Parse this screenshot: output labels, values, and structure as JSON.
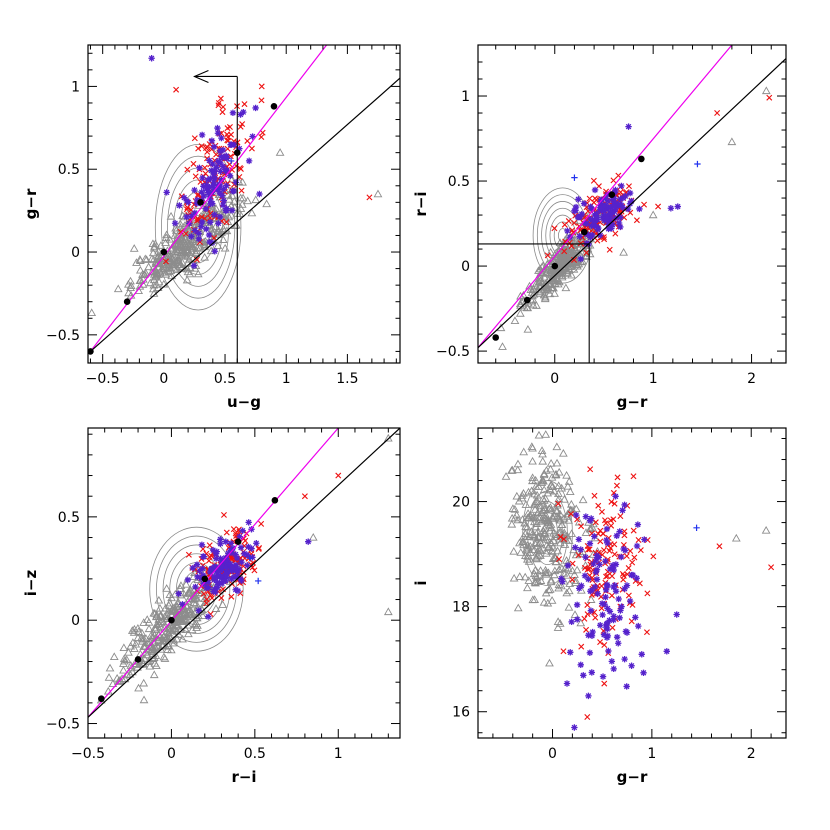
{
  "chart_data": [
    {
      "id": "p1",
      "type": "scatter",
      "xlabel": "u−g",
      "ylabel": "g−r",
      "xlim": [
        -0.62,
        1.93
      ],
      "ylim": [
        -0.67,
        1.25
      ],
      "xticks": [
        -0.5,
        0,
        0.5,
        1,
        1.5
      ],
      "xticklabels": [
        "−0.5",
        "0",
        "0.5",
        "1",
        "1.5"
      ],
      "yticks": [
        -0.5,
        0,
        0.5,
        1
      ],
      "yticklabels": [
        "−0.5",
        "0",
        "0.5",
        "1"
      ],
      "lines": [
        {
          "name": "magenta-line",
          "color": "#ee00ee",
          "points": [
            [
              -0.6,
              -0.6
            ],
            [
              1.33,
              1.25
            ]
          ]
        },
        {
          "name": "black-line",
          "color": "#000000",
          "points": [
            [
              -0.6,
              -0.6
            ],
            [
              1.93,
              1.05
            ]
          ]
        }
      ],
      "cut_lines": [
        {
          "name": "vertical-cut",
          "points": [
            [
              0.6,
              -0.67
            ],
            [
              0.6,
              1.06
            ]
          ]
        },
        {
          "name": "arrow-shaft",
          "points": [
            [
              0.6,
              1.06
            ],
            [
              0.25,
              1.06
            ]
          ]
        }
      ],
      "arrow": {
        "tip": [
          0.25,
          1.06
        ]
      },
      "black_dots": [
        [
          -0.6,
          -0.6
        ],
        [
          -0.3,
          -0.3
        ],
        [
          0.0,
          0.0
        ],
        [
          0.3,
          0.3
        ],
        [
          0.6,
          0.6
        ],
        [
          0.9,
          0.88
        ]
      ],
      "contour": {
        "cx": 0.28,
        "cy": 0.15,
        "rx": 0.35,
        "ry": 0.5,
        "levels": 7
      },
      "gray_cloud": {
        "n": 330,
        "cx": 0.18,
        "cy": 0.05,
        "sx": 0.22,
        "sy": 0.15,
        "rho": 0.85
      },
      "red_cloud": {
        "n": 130,
        "cx": 0.42,
        "cy": 0.45,
        "sx": 0.14,
        "sy": 0.2,
        "rho": 0.5
      },
      "star_cloud": {
        "n": 110,
        "cx": 0.4,
        "cy": 0.42,
        "sx": 0.13,
        "sy": 0.2,
        "rho": 0.5
      },
      "gray_extra": [
        [
          1.75,
          0.35
        ],
        [
          0.95,
          0.6
        ]
      ],
      "red_extra": [
        [
          1.68,
          0.33
        ],
        [
          0.1,
          0.98
        ],
        [
          0.8,
          1.0
        ],
        [
          0.45,
          0.9
        ]
      ],
      "star_extra": [
        [
          -0.1,
          1.17
        ],
        [
          0.75,
          0.87
        ],
        [
          0.2,
          0.3
        ]
      ],
      "blue_plus": [
        [
          0.55,
          0.55
        ]
      ]
    },
    {
      "id": "p2",
      "type": "scatter",
      "xlabel": "g−r",
      "ylabel": "r−i",
      "xlim": [
        -0.78,
        2.35
      ],
      "ylim": [
        -0.57,
        1.3
      ],
      "xticks": [
        0,
        1,
        2
      ],
      "xticklabels": [
        "0",
        "1",
        "2"
      ],
      "yticks": [
        -0.5,
        0,
        0.5,
        1
      ],
      "yticklabels": [
        "−0.5",
        "0",
        "0.5",
        "1"
      ],
      "lines": [
        {
          "name": "magenta-line",
          "color": "#ee00ee",
          "points": [
            [
              -0.78,
              -0.48
            ],
            [
              1.8,
              1.3
            ]
          ]
        },
        {
          "name": "black-line",
          "color": "#000000",
          "points": [
            [
              -0.78,
              -0.48
            ],
            [
              2.35,
              1.22
            ]
          ]
        }
      ],
      "cut_lines": [
        {
          "name": "horizontal-cut",
          "points": [
            [
              -0.78,
              0.13
            ],
            [
              0.35,
              0.13
            ]
          ]
        },
        {
          "name": "vertical-cut",
          "points": [
            [
              0.35,
              0.13
            ],
            [
              0.35,
              -0.57
            ]
          ]
        }
      ],
      "black_dots": [
        [
          -0.6,
          -0.42
        ],
        [
          -0.28,
          -0.2
        ],
        [
          0.0,
          0.0
        ],
        [
          0.3,
          0.2
        ],
        [
          0.58,
          0.42
        ],
        [
          0.88,
          0.63
        ]
      ],
      "contour": {
        "cx": 0.08,
        "cy": 0.18,
        "rx": 0.3,
        "ry": 0.28,
        "levels": 7
      },
      "gray_cloud": {
        "n": 300,
        "cx": 0.05,
        "cy": 0.0,
        "sx": 0.18,
        "sy": 0.12,
        "rho": 0.85
      },
      "red_cloud": {
        "n": 130,
        "cx": 0.48,
        "cy": 0.3,
        "sx": 0.18,
        "sy": 0.09,
        "rho": 0.6
      },
      "star_cloud": {
        "n": 110,
        "cx": 0.45,
        "cy": 0.3,
        "sx": 0.16,
        "sy": 0.08,
        "rho": 0.6
      },
      "gray_extra": [
        [
          1.8,
          0.73
        ],
        [
          2.15,
          1.03
        ],
        [
          1.0,
          0.3
        ],
        [
          0.7,
          0.08
        ]
      ],
      "red_extra": [
        [
          2.18,
          0.99
        ],
        [
          1.65,
          0.9
        ],
        [
          1.05,
          0.35
        ]
      ],
      "star_extra": [
        [
          0.75,
          0.82
        ],
        [
          1.25,
          0.35
        ],
        [
          1.18,
          0.34
        ]
      ],
      "blue_plus": [
        [
          1.45,
          0.6
        ],
        [
          0.2,
          0.52
        ]
      ]
    },
    {
      "id": "p3",
      "type": "scatter",
      "xlabel": "r−i",
      "ylabel": "i−z",
      "xlim": [
        -0.5,
        1.37
      ],
      "ylim": [
        -0.57,
        0.93
      ],
      "xticks": [
        -0.5,
        0,
        0.5,
        1
      ],
      "xticklabels": [
        "−0.5",
        "0",
        "0.5",
        "1"
      ],
      "yticks": [
        -0.5,
        0,
        0.5
      ],
      "yticklabels": [
        "−0.5",
        "0",
        "0.5"
      ],
      "lines": [
        {
          "name": "magenta-line",
          "color": "#ee00ee",
          "points": [
            [
              -0.5,
              -0.47
            ],
            [
              1.0,
              0.93
            ]
          ]
        },
        {
          "name": "black-line",
          "color": "#000000",
          "points": [
            [
              -0.5,
              -0.47
            ],
            [
              1.37,
              0.93
            ]
          ]
        }
      ],
      "cut_lines": [],
      "black_dots": [
        [
          -0.42,
          -0.38
        ],
        [
          -0.2,
          -0.19
        ],
        [
          0.0,
          0.0
        ],
        [
          0.2,
          0.2
        ],
        [
          0.4,
          0.38
        ],
        [
          0.62,
          0.58
        ]
      ],
      "contour": {
        "cx": 0.15,
        "cy": 0.15,
        "rx": 0.28,
        "ry": 0.3,
        "levels": 7
      },
      "gray_cloud": {
        "n": 320,
        "cx": 0.0,
        "cy": -0.02,
        "sx": 0.16,
        "sy": 0.14,
        "rho": 0.85
      },
      "red_cloud": {
        "n": 130,
        "cx": 0.32,
        "cy": 0.26,
        "sx": 0.1,
        "sy": 0.09,
        "rho": 0.5
      },
      "star_cloud": {
        "n": 110,
        "cx": 0.3,
        "cy": 0.24,
        "sx": 0.09,
        "sy": 0.08,
        "rho": 0.5
      },
      "gray_extra": [
        [
          1.3,
          0.88
        ],
        [
          1.3,
          0.04
        ],
        [
          0.85,
          0.4
        ]
      ],
      "red_extra": [
        [
          1.0,
          0.7
        ],
        [
          0.8,
          0.6
        ],
        [
          0.45,
          0.42
        ]
      ],
      "star_extra": [
        [
          0.82,
          0.38
        ],
        [
          0.48,
          0.44
        ]
      ],
      "blue_plus": [
        [
          0.52,
          0.19
        ],
        [
          0.47,
          0.3
        ]
      ]
    },
    {
      "id": "p4",
      "type": "scatter",
      "xlabel": "g−r",
      "ylabel": "i",
      "xlim": [
        -0.75,
        2.35
      ],
      "ylim": [
        15.5,
        21.4
      ],
      "xticks": [
        0,
        1,
        2
      ],
      "xticklabels": [
        "0",
        "1",
        "2"
      ],
      "yticks": [
        16,
        18,
        20
      ],
      "yticklabels": [
        "16",
        "18",
        "20"
      ],
      "lines": [],
      "cut_lines": [],
      "black_dots": [],
      "contour": {
        "cx": -0.05,
        "cy": 19.4,
        "rx": 0.25,
        "ry": 1.0,
        "levels": 5
      },
      "gray_cloud": {
        "n": 300,
        "cx": -0.05,
        "cy": 19.4,
        "sx": 0.18,
        "sy": 0.75,
        "rho": -0.2
      },
      "red_cloud": {
        "n": 130,
        "cx": 0.55,
        "cy": 18.7,
        "sx": 0.2,
        "sy": 0.8,
        "rho": 0.0
      },
      "star_cloud": {
        "n": 110,
        "cx": 0.5,
        "cy": 18.2,
        "sx": 0.18,
        "sy": 0.9,
        "rho": 0.0
      },
      "gray_extra": [
        [
          1.85,
          19.3
        ],
        [
          2.15,
          19.45
        ],
        [
          -0.1,
          20.9
        ],
        [
          -0.35,
          20.6
        ]
      ],
      "red_extra": [
        [
          2.2,
          18.75
        ],
        [
          1.68,
          19.15
        ],
        [
          0.35,
          15.9
        ]
      ],
      "star_extra": [
        [
          0.22,
          15.7
        ],
        [
          1.25,
          17.85
        ],
        [
          1.15,
          17.15
        ]
      ],
      "blue_plus": [
        [
          1.45,
          19.5
        ]
      ]
    }
  ]
}
